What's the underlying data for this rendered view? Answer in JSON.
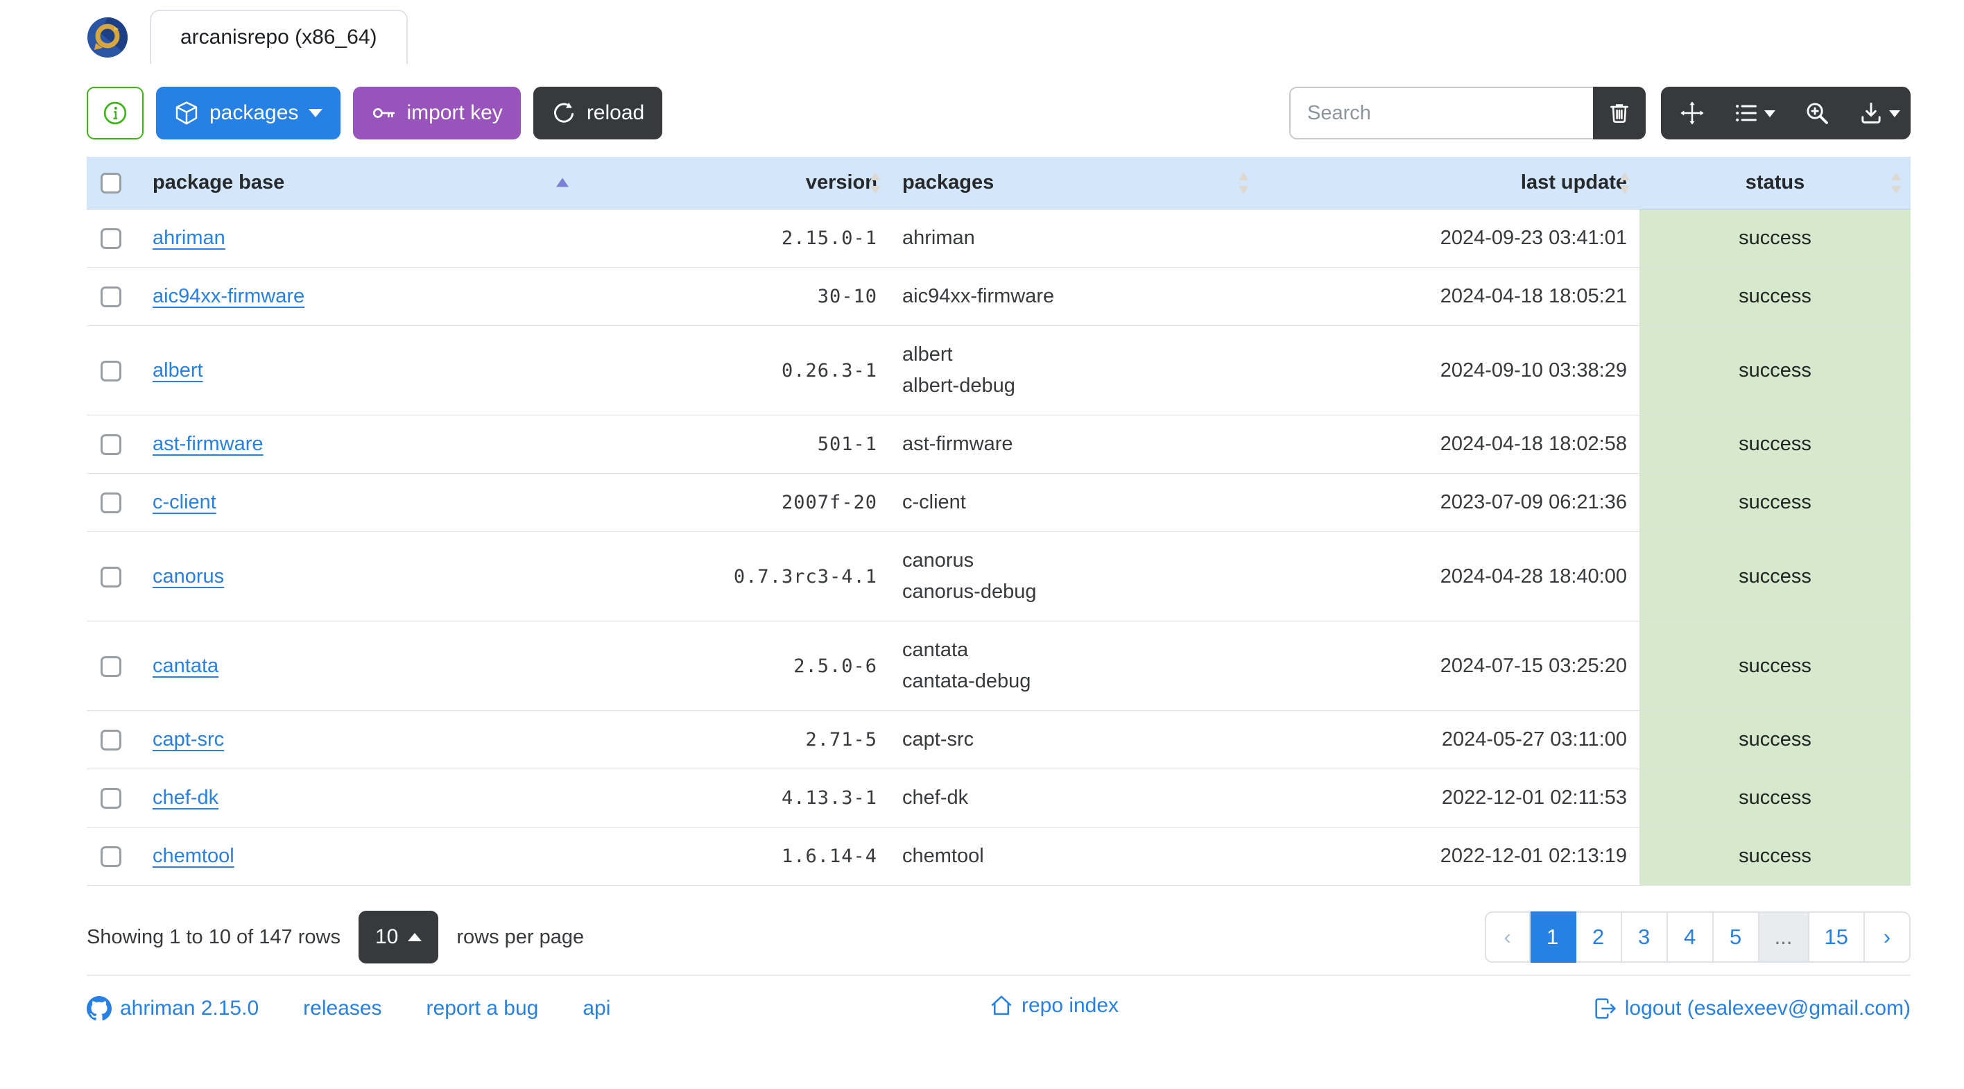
{
  "colors": {
    "primary_blue": "#2780e3",
    "info_purple": "#9954bb",
    "dark": "#373a3c",
    "success_green": "#3fb618",
    "table_header_bg": "#d4e6f9",
    "status_success_bg": "#d6e9cc",
    "link_blue": "#2780e3",
    "border_grey": "#dee2e6"
  },
  "header": {
    "tab_label": "arcanisrepo (x86_64)",
    "logo": "ahriman-logo"
  },
  "toolbar": {
    "packages_label": "packages",
    "import_key_label": "import key",
    "reload_label": "reload",
    "search_placeholder": "Search",
    "icons": [
      "info-icon",
      "box-icon",
      "key-icon",
      "refresh-icon",
      "trash-icon",
      "arrows-move-icon",
      "list-icon",
      "zoom-in-icon",
      "download-icon"
    ]
  },
  "table": {
    "headers": {
      "package_base": "package base",
      "version": "version",
      "packages": "packages",
      "last_update": "last update",
      "status": "status"
    },
    "sort": {
      "column": "package base",
      "direction": "ascending"
    },
    "rows": [
      {
        "package_base": "ahriman",
        "version": "2.15.0-1",
        "packages": [
          "ahriman"
        ],
        "last_update": "2024-09-23 03:41:01",
        "status": "success"
      },
      {
        "package_base": "aic94xx-firmware",
        "version": "30-10",
        "packages": [
          "aic94xx-firmware"
        ],
        "last_update": "2024-04-18 18:05:21",
        "status": "success"
      },
      {
        "package_base": "albert",
        "version": "0.26.3-1",
        "packages": [
          "albert",
          "albert-debug"
        ],
        "last_update": "2024-09-10 03:38:29",
        "status": "success"
      },
      {
        "package_base": "ast-firmware",
        "version": "501-1",
        "packages": [
          "ast-firmware"
        ],
        "last_update": "2024-04-18 18:02:58",
        "status": "success"
      },
      {
        "package_base": "c-client",
        "version": "2007f-20",
        "packages": [
          "c-client"
        ],
        "last_update": "2023-07-09 06:21:36",
        "status": "success"
      },
      {
        "package_base": "canorus",
        "version": "0.7.3rc3-4.1",
        "packages": [
          "canorus",
          "canorus-debug"
        ],
        "last_update": "2024-04-28 18:40:00",
        "status": "success"
      },
      {
        "package_base": "cantata",
        "version": "2.5.0-6",
        "packages": [
          "cantata",
          "cantata-debug"
        ],
        "last_update": "2024-07-15 03:25:20",
        "status": "success"
      },
      {
        "package_base": "capt-src",
        "version": "2.71-5",
        "packages": [
          "capt-src"
        ],
        "last_update": "2024-05-27 03:11:00",
        "status": "success"
      },
      {
        "package_base": "chef-dk",
        "version": "4.13.3-1",
        "packages": [
          "chef-dk"
        ],
        "last_update": "2022-12-01 02:11:53",
        "status": "success"
      },
      {
        "package_base": "chemtool",
        "version": "1.6.14-4",
        "packages": [
          "chemtool"
        ],
        "last_update": "2022-12-01 02:13:19",
        "status": "success"
      }
    ]
  },
  "pagination_bar": {
    "showing_text": "Showing 1 to 10 of 147 rows",
    "page_size": "10",
    "rows_per_page_label": "rows per page",
    "pages": [
      {
        "label": "‹",
        "kind": "prev",
        "disabled": true
      },
      {
        "label": "1",
        "active": true
      },
      {
        "label": "2"
      },
      {
        "label": "3"
      },
      {
        "label": "4"
      },
      {
        "label": "5"
      },
      {
        "label": "...",
        "kind": "ellipsis"
      },
      {
        "label": "15"
      },
      {
        "label": "›",
        "kind": "next"
      }
    ]
  },
  "footer": {
    "version_label": "ahriman 2.15.0",
    "releases_label": "releases",
    "report_bug_label": "report a bug",
    "api_label": "api",
    "repo_index_label": "repo index",
    "logout_label": "logout (esalexeev@gmail.com)"
  }
}
